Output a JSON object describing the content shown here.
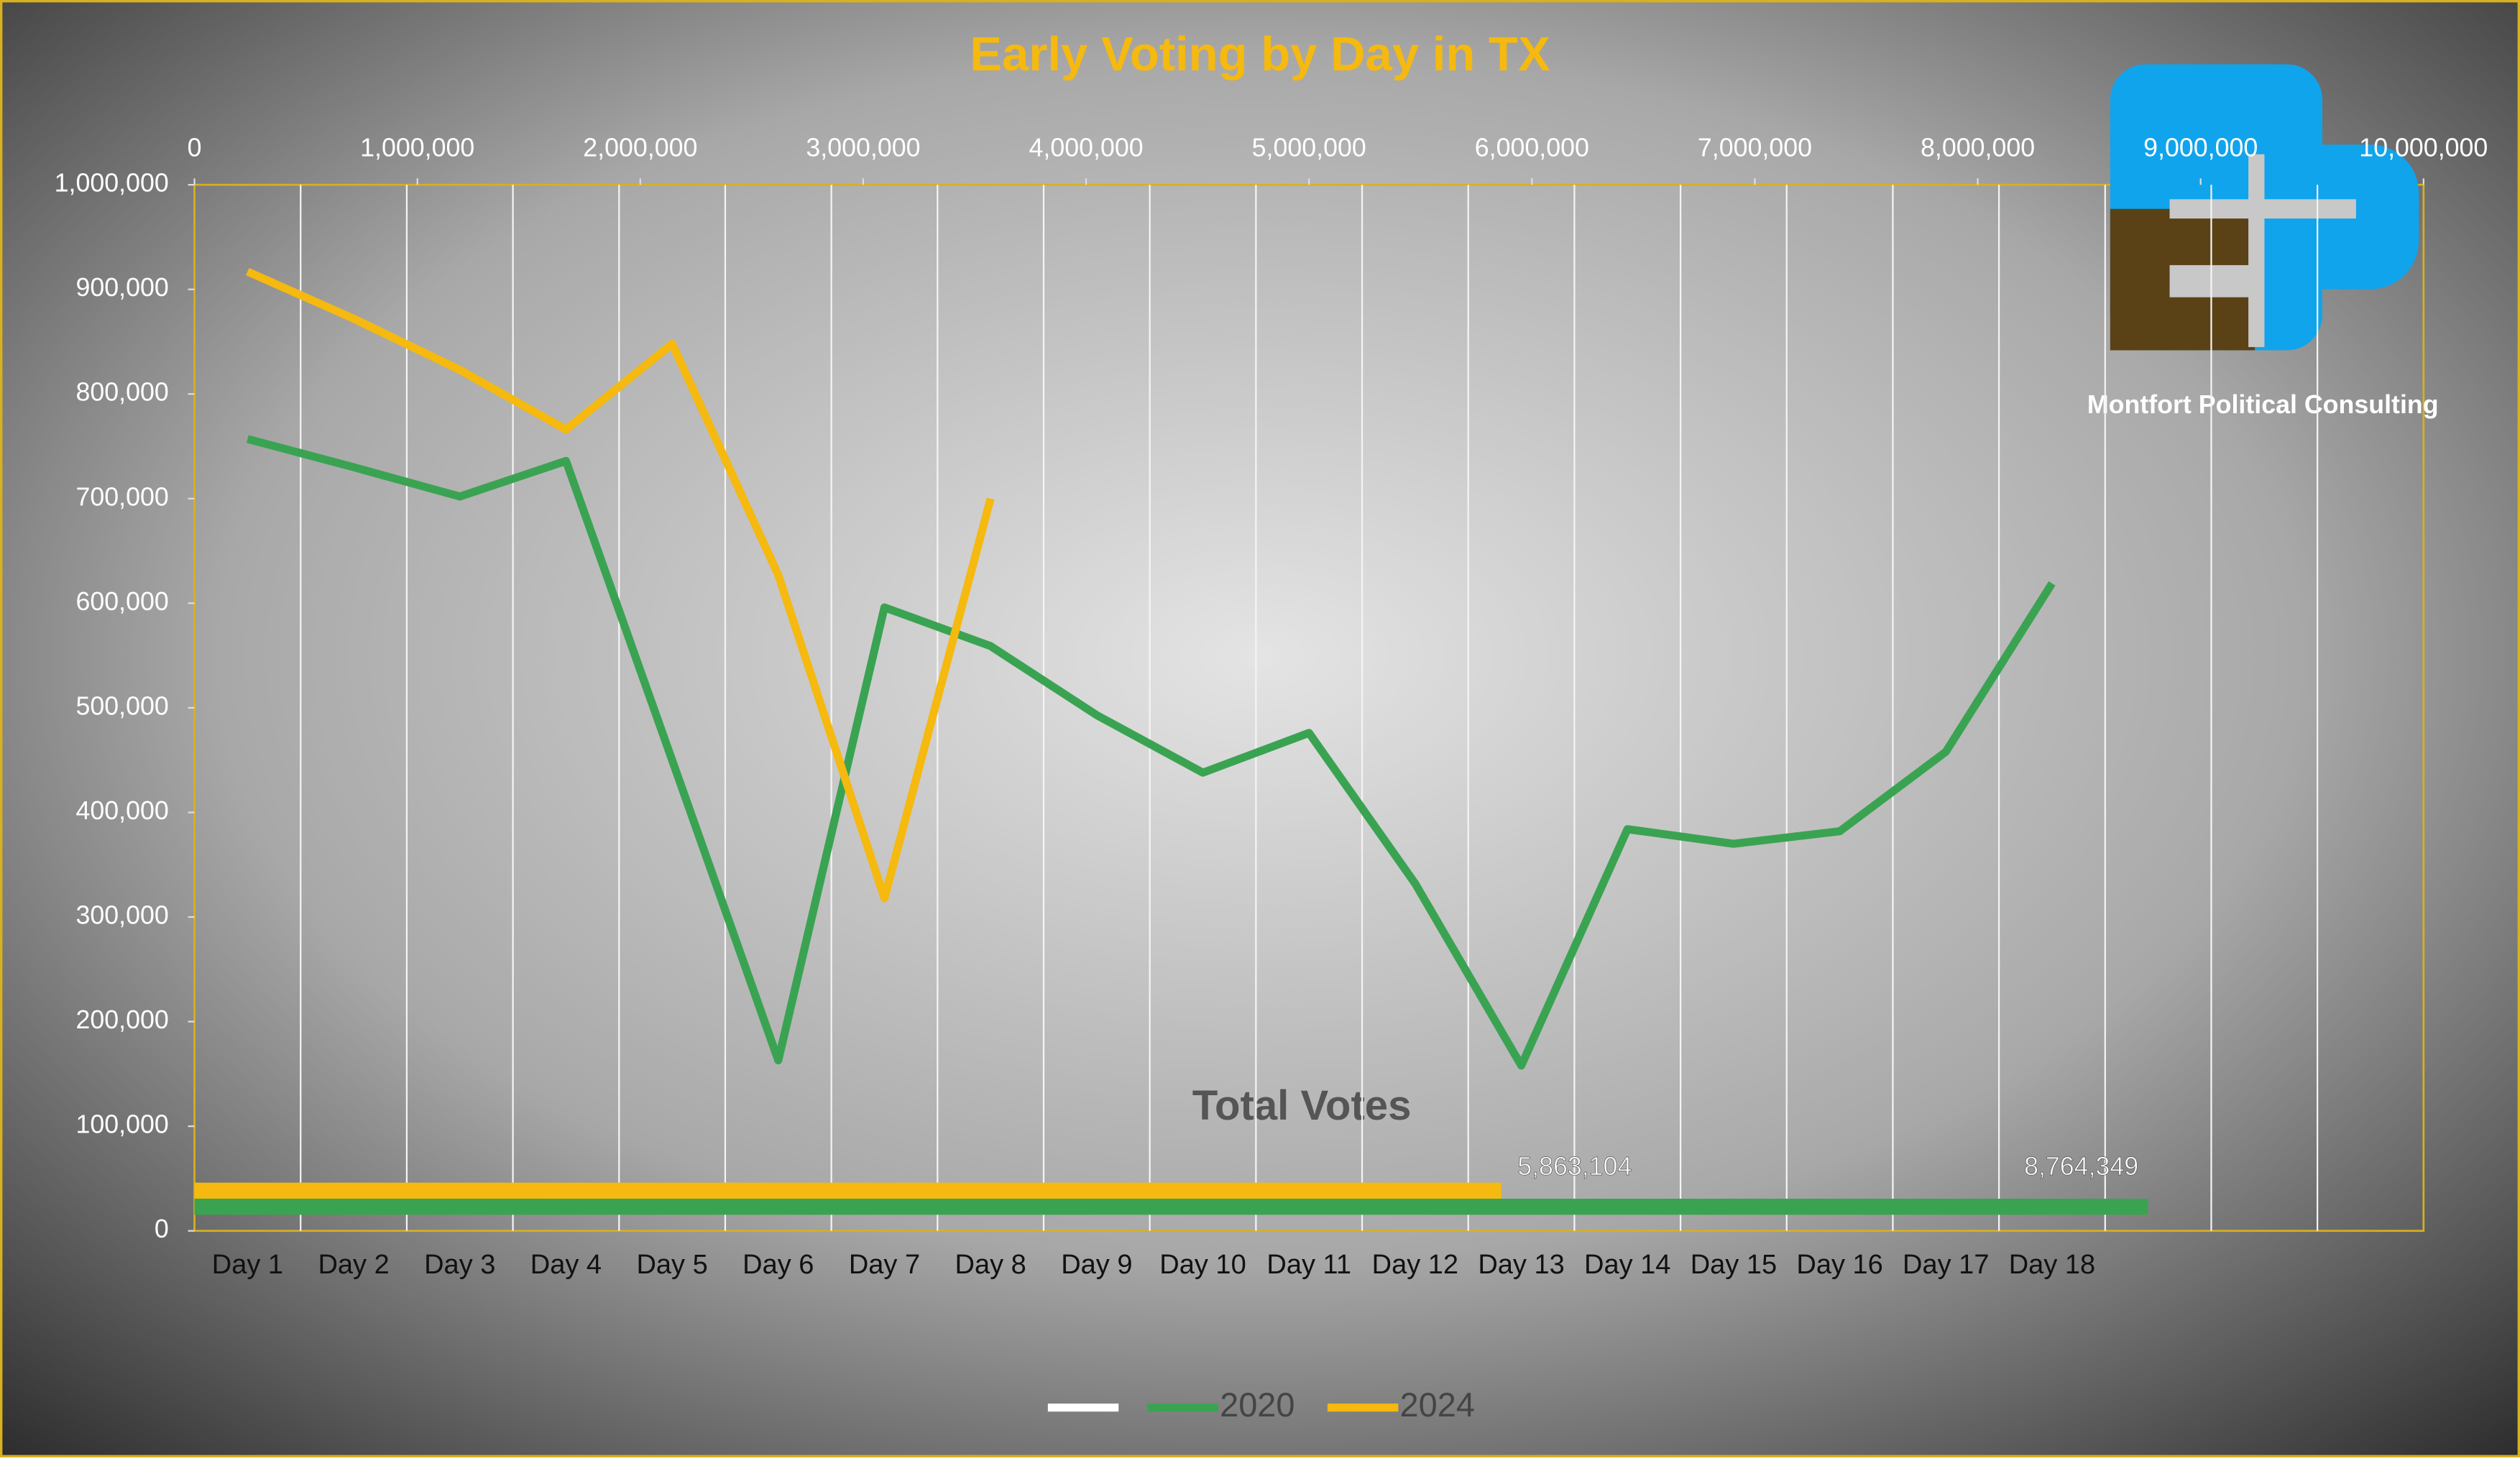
{
  "chart_data": [
    {
      "type": "line",
      "title": "Early Voting by Day in TX",
      "categories": [
        "Day 1",
        "Day 2",
        "Day 3",
        "Day 4",
        "Day 5",
        "Day 6",
        "Day 7",
        "Day 8",
        "Day 9",
        "Day 10",
        "Day 11",
        "Day 12",
        "Day 13",
        "Day 14",
        "Day 15",
        "Day 16",
        "Day 17",
        "Day 18",
        null,
        null,
        null
      ],
      "series": [
        {
          "name": "2020",
          "color": "#3aa352",
          "values": [
            757000,
            730000,
            702000,
            736000,
            450000,
            163000,
            596000,
            559000,
            493000,
            438000,
            476000,
            332000,
            158000,
            384000,
            370000,
            382000,
            458000,
            619000,
            null,
            null,
            null
          ]
        },
        {
          "name": "2024",
          "color": "#f5b90f",
          "values": [
            917000,
            872000,
            823000,
            766000,
            848000,
            627000,
            318000,
            700000,
            null,
            null,
            null,
            null,
            null,
            null,
            null,
            null,
            null,
            null,
            null,
            null,
            null
          ]
        }
      ],
      "ylim": [
        0,
        1000000
      ],
      "yticks": [
        0,
        {
          "value": 100000,
          "label": "100,000"
        },
        {
          "value": 200000,
          "label": "200,000"
        },
        {
          "value": 300000,
          "label": "300,000"
        },
        {
          "value": 400000,
          "label": "400,000"
        },
        {
          "value": 500000,
          "label": "500,000"
        },
        {
          "value": 600000,
          "label": "600,000"
        },
        {
          "value": 700000,
          "label": "700,000"
        },
        {
          "value": 800000,
          "label": "800,000"
        },
        {
          "value": 900000,
          "label": "900,000"
        },
        {
          "value": 1000000,
          "label": "1,000,000"
        }
      ],
      "grid": true,
      "legend": "bottom"
    },
    {
      "type": "hbar",
      "title": "Total Votes",
      "series": [
        {
          "name": "2020",
          "color": "#3aa352",
          "values": [
            8764349
          ],
          "value_labels": [
            "8,764,349"
          ]
        },
        {
          "name": "2024",
          "color": "#f5b90f",
          "values": [
            5863104
          ],
          "value_labels": [
            "5,863,104"
          ]
        }
      ],
      "xlim": [
        0,
        10000000
      ],
      "xticks": [
        0,
        {
          "value": 1000000,
          "label": "1,000,000"
        },
        {
          "value": 2000000,
          "label": "2,000,000"
        },
        {
          "value": 3000000,
          "label": "3,000,000"
        },
        {
          "value": 4000000,
          "label": "4,000,000"
        },
        {
          "value": 5000000,
          "label": "5,000,000"
        },
        {
          "value": 6000000,
          "label": "6,000,000"
        },
        {
          "value": 7000000,
          "label": "7,000,000"
        },
        {
          "value": 8000000,
          "label": "8,000,000"
        },
        {
          "value": 9000000,
          "label": "9,000,000"
        },
        {
          "value": 10000000,
          "label": "10,000,000"
        }
      ]
    }
  ],
  "logo": {
    "text": "Montfort Political Consulting"
  }
}
